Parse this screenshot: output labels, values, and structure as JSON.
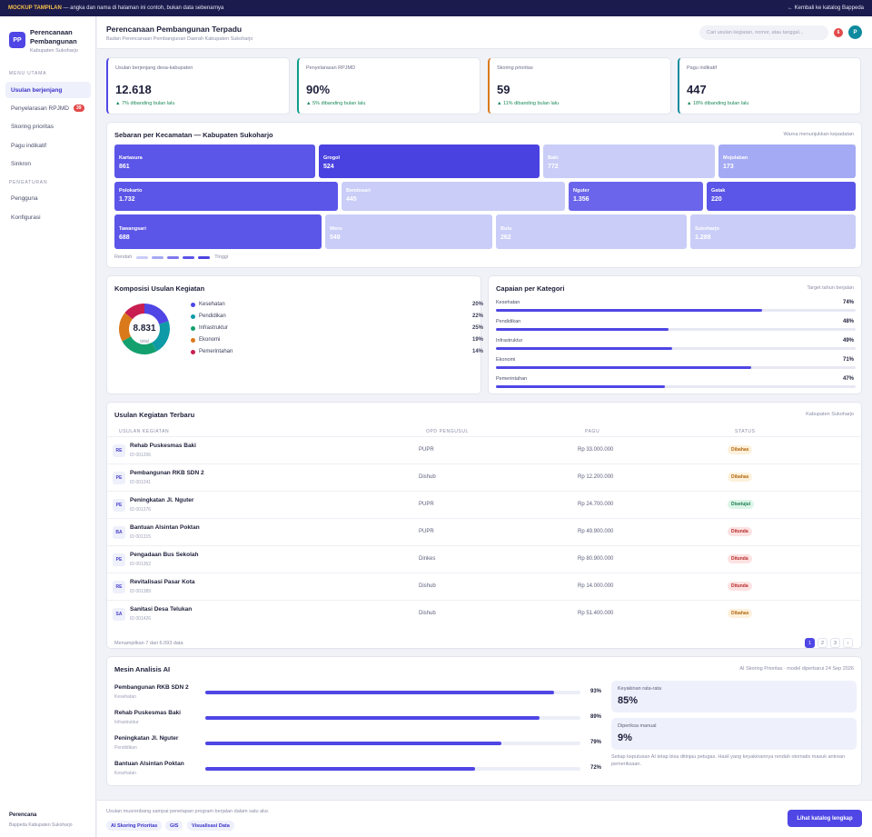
{
  "banner": {
    "tag": "MOCKUP TAMPILAN",
    "text": " — angka dan nama di halaman ini contoh, bukan data sebenarnya",
    "back": "← Kembali ke katalog Bappeda"
  },
  "brand": {
    "logo": "PP",
    "name": "Perencanaan Pembangunan",
    "region": "Kabupaten Sukoharjo"
  },
  "sidebar": {
    "section_main": "MENU UTAMA",
    "main_items": [
      {
        "label": "Usulan berjenjang"
      },
      {
        "label": "Penyelarasan RPJMD",
        "badge": "39"
      },
      {
        "label": "Skoring prioritas"
      },
      {
        "label": "Pagu indikatif"
      },
      {
        "label": "Sinkron"
      }
    ],
    "section_settings": "PENGATURAN",
    "settings_items": [
      {
        "label": "Pengguna"
      },
      {
        "label": "Konfigurasi"
      }
    ],
    "foot_title": "Perencana",
    "foot_sub": "Bappeda Kabupaten Sukoharjo"
  },
  "header": {
    "title": "Perencanaan Pembangunan Terpadu",
    "subtitle": "Badan Perencanaan Pembangunan Daerah Kabupaten Sukoharjo",
    "search_placeholder": "Cari usulan kegiatan, nomor, atau tanggal...",
    "notif_count": "6",
    "avatar": "P"
  },
  "kpis": [
    {
      "label": "Usulan berjenjang desa-kabupaten",
      "value": "12.618",
      "delta": "▲ 7% dibanding bulan lalu",
      "color": "#4f46e5"
    },
    {
      "label": "Penyelarasan RPJMD",
      "value": "90%",
      "delta": "▲ 5% dibanding bulan lalu",
      "color": "#0f9d8a"
    },
    {
      "label": "Skoring prioritas",
      "value": "59",
      "delta": "▲ 11% dibanding bulan lalu",
      "color": "#d9791a"
    },
    {
      "label": "Pagu indikatif",
      "value": "447",
      "delta": "▲ 18% dibanding bulan lalu",
      "color": "#0e8a9e"
    }
  ],
  "map": {
    "title": "Sebaran per Kecamatan — Kabupaten Sukoharjo",
    "note": "Warna menunjukkan kepadatan",
    "tiles": [
      {
        "name": "Kartasura",
        "value": "861",
        "color": "#5b55e8"
      },
      {
        "name": "Grogol",
        "value": "524",
        "color": "#4a42e0"
      },
      {
        "name": "Baki",
        "value": "772",
        "color": "#c9cdf7"
      },
      {
        "name": "Mojolaban",
        "value": "173",
        "color": "#a4aaf3"
      },
      {
        "name": "Polokarto",
        "value": "1.732",
        "color": "#5b55e8"
      },
      {
        "name": "Bendosari",
        "value": "445",
        "color": "#c9cdf7"
      },
      {
        "name": "Nguter",
        "value": "1.356",
        "color": "#6a65ea"
      },
      {
        "name": "Gatak",
        "value": "220",
        "color": "#5b55e8"
      },
      {
        "name": "Tawangsari",
        "value": "688",
        "color": "#5b55e8"
      },
      {
        "name": "Weru",
        "value": "549",
        "color": "#c9cdf7"
      },
      {
        "name": "Bulu",
        "value": "262",
        "color": "#c9cdf7"
      },
      {
        "name": "Sukoharjo",
        "value": "1.288",
        "color": "#c9cdf7"
      }
    ],
    "legend_low": "Rendah",
    "legend_high": "Tinggi",
    "legend_colors": [
      "#c9cdf7",
      "#a4aaf3",
      "#7e77ee",
      "#5b55e8",
      "#4a42e0"
    ]
  },
  "composition": {
    "title": "Komposisi Usulan Kegiatan",
    "total": "8.831",
    "total_label": "total",
    "items": [
      {
        "name": "Kesehatan",
        "pct": "20%",
        "share": 20,
        "color": "#4f46e5"
      },
      {
        "name": "Pendidikan",
        "pct": "22%",
        "share": 22,
        "color": "#0e9aa7"
      },
      {
        "name": "Infrastruktur",
        "pct": "25%",
        "share": 25,
        "color": "#13a06e"
      },
      {
        "name": "Ekonomi",
        "pct": "19%",
        "share": 19,
        "color": "#d9791a"
      },
      {
        "name": "Pemerintahan",
        "pct": "14%",
        "share": 14,
        "color": "#c81e50"
      }
    ]
  },
  "achievement": {
    "title": "Capaian per Kategori",
    "note": "Target tahun berjalan",
    "items": [
      {
        "name": "Kesehatan",
        "pct": "74%",
        "value": 74
      },
      {
        "name": "Pendidikan",
        "pct": "48%",
        "value": 48
      },
      {
        "name": "Infrastruktur",
        "pct": "49%",
        "value": 49
      },
      {
        "name": "Ekonomi",
        "pct": "71%",
        "value": 71
      },
      {
        "name": "Pemerintahan",
        "pct": "47%",
        "value": 47
      }
    ]
  },
  "table": {
    "title": "Usulan Kegiatan Terbaru",
    "note": "Kabupaten Sukoharjo",
    "headers": [
      "USULAN KEGIATAN",
      "OPD PENGUSUL",
      "PAGU",
      "STATUS"
    ],
    "rows": [
      {
        "abbr": "RE",
        "name": "Rehab Puskesmas Baki",
        "id": "ID 001206",
        "opd": "PUPR",
        "pagu": "Rp 33.000.000",
        "status": "Dibahas"
      },
      {
        "abbr": "PE",
        "name": "Pembangunan RKB SDN 2",
        "id": "ID 001241",
        "opd": "Dishub",
        "pagu": "Rp 12.200.000",
        "status": "Dibahas"
      },
      {
        "abbr": "PE",
        "name": "Peningkatan Jl. Nguter",
        "id": "ID 001276",
        "opd": "PUPR",
        "pagu": "Rp 24.700.000",
        "status": "Disetujui"
      },
      {
        "abbr": "BA",
        "name": "Bantuan Alsintan Poktan",
        "id": "ID 001315",
        "opd": "PUPR",
        "pagu": "Rp 49.900.000",
        "status": "Ditunda"
      },
      {
        "abbr": "PE",
        "name": "Pengadaan Bus Sekolah",
        "id": "ID 001352",
        "opd": "Dinkes",
        "pagu": "Rp 80.900.000",
        "status": "Ditunda"
      },
      {
        "abbr": "RE",
        "name": "Revitalisasi Pasar Kota",
        "id": "ID 001389",
        "opd": "Dishub",
        "pagu": "Rp 14.000.000",
        "status": "Ditunda"
      },
      {
        "abbr": "SA",
        "name": "Sanitasi Desa Telukan",
        "id": "ID 001426",
        "opd": "Dishub",
        "pagu": "Rp 51.400.000",
        "status": "Dibahas"
      }
    ],
    "status_colors": {
      "Dibahas": {
        "bg": "#fdf1dc",
        "fg": "#b4660f"
      },
      "Disetujui": {
        "bg": "#dcf5e8",
        "fg": "#177a4c"
      },
      "Ditunda": {
        "bg": "#fde2e2",
        "fg": "#b82a2a"
      }
    },
    "footer": "Menampilkan 7 dari 6.093 data",
    "pages": [
      "1",
      "2",
      "3",
      "›"
    ]
  },
  "ai": {
    "title": "Mesin Analisis AI",
    "note": "AI Skoring Prioritas · model diperbarui 24 Sep 2026",
    "items": [
      {
        "name": "Pembangunan RKB SDN 2",
        "cat": "Kesehatan",
        "pct": "93%",
        "value": 93
      },
      {
        "name": "Rehab Puskesmas Baki",
        "cat": "Infrastruktur",
        "pct": "89%",
        "value": 89
      },
      {
        "name": "Peningkatan Jl. Nguter",
        "cat": "Pendidikan",
        "pct": "79%",
        "value": 79
      },
      {
        "name": "Bantuan Alsintan Poktan",
        "cat": "Kesehatan",
        "pct": "72%",
        "value": 72
      }
    ],
    "conf_label": "Keyakinan rata-rata",
    "conf_value": "85%",
    "manual_label": "Diperiksa manual",
    "manual_value": "9%",
    "disclaimer": "Setiap keputusan AI tetap bisa ditinjau petugas. Hasil yang keyakinannya rendah otomatis masuk antrean pemeriksaan."
  },
  "footer": {
    "text": "Usulan musrenbang sampai penetapan program berjalan dalam satu alur.",
    "chips": [
      "AI Skoring Prioritas",
      "GIS",
      "Visualisasi Data"
    ],
    "cta": "Lihat katalog lengkap"
  }
}
